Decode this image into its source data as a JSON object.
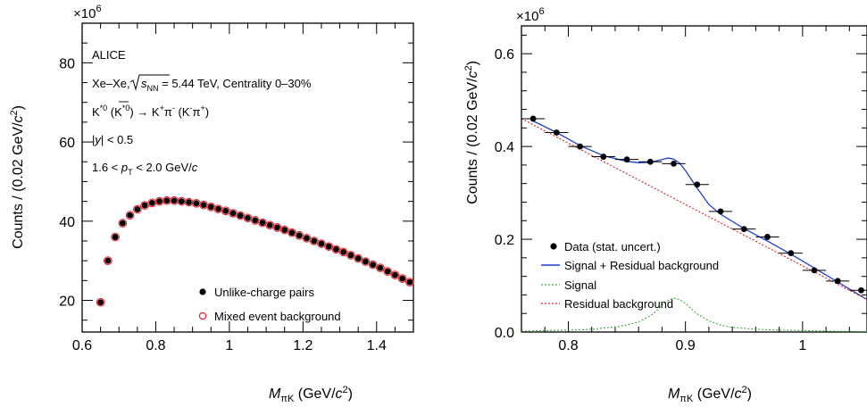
{
  "chart_data": [
    {
      "type": "scatter",
      "multiplier": "×10",
      "multiplier_exp": "6",
      "xlabel": {
        "symbol": "M",
        "sub": "πK",
        "unit_pre": " (GeV/",
        "unit_c": "c",
        "unit_exp": "2",
        "unit_post": ")"
      },
      "ylabel": {
        "pre": "Counts / (0.02 GeV/",
        "c": "c",
        "exp": "2",
        "post": ")"
      },
      "xlim": [
        0.6,
        1.5
      ],
      "ylim": [
        12,
        90
      ],
      "xticks": [
        0.6,
        0.8,
        1.0,
        1.2,
        1.4
      ],
      "xtick_labels": [
        "0.6",
        "0.8",
        "1",
        "1.2",
        "1.4"
      ],
      "yticks": [
        20,
        40,
        60,
        80
      ],
      "ytick_labels": [
        "20",
        "40",
        "60",
        "80"
      ],
      "annotations": {
        "experiment": "ALICE",
        "system_pre": "Xe–Xe, ",
        "system_sqrt": "s",
        "system_sub": "NN",
        "system_post": " = 5.44 TeV, Centrality 0–30%",
        "decay_k": "K",
        "decay_sup": "*0",
        "decay_anti": "K",
        "decay_anti_sup": "*0",
        "decay_arrow": "→ K",
        "decay_kp": "+",
        "decay_pi": "π",
        "decay_pim": "-",
        "decay_conj": "(K",
        "decay_conj_km": "-",
        "decay_conj_pi": "π",
        "decay_conj_pip": "+",
        "decay_close": ")",
        "rapidity_pre": "|",
        "rapidity_y": "y",
        "rapidity_post": "| < 0.5",
        "pt_pre": "1.6 < ",
        "pt_p": "p",
        "pt_sub": "T",
        "pt_post": " < 2.0 GeV/",
        "pt_c": "c"
      },
      "legend": [
        "Unlike-charge pairs",
        "Mixed event background"
      ],
      "legend_position": "bottom-right",
      "series": [
        {
          "name": "Unlike-charge pairs",
          "marker": "filled-circle",
          "color": "#000000",
          "x": [
            0.65,
            0.67,
            0.69,
            0.71,
            0.73,
            0.75,
            0.77,
            0.79,
            0.81,
            0.83,
            0.85,
            0.87,
            0.89,
            0.91,
            0.93,
            0.95,
            0.97,
            0.99,
            1.01,
            1.03,
            1.05,
            1.07,
            1.09,
            1.11,
            1.13,
            1.15,
            1.17,
            1.19,
            1.21,
            1.23,
            1.25,
            1.27,
            1.29,
            1.31,
            1.33,
            1.35,
            1.37,
            1.39,
            1.41,
            1.43,
            1.45,
            1.47,
            1.49
          ],
          "y": [
            19.5,
            30.0,
            36.0,
            39.5,
            41.5,
            43.0,
            44.0,
            44.6,
            45.0,
            45.2,
            45.2,
            45.0,
            44.8,
            44.5,
            44.1,
            43.6,
            43.1,
            42.6,
            42.0,
            41.4,
            40.8,
            40.2,
            39.6,
            39.0,
            38.4,
            37.8,
            37.1,
            36.4,
            35.7,
            35.0,
            34.3,
            33.6,
            32.9,
            32.2,
            31.4,
            30.6,
            29.8,
            29.0,
            28.2,
            27.3,
            26.4,
            25.5,
            24.6
          ]
        },
        {
          "name": "Mixed event background",
          "marker": "open-circle",
          "color": "#e8222a",
          "x": [
            0.65,
            0.67,
            0.69,
            0.71,
            0.73,
            0.75,
            0.77,
            0.79,
            0.81,
            0.83,
            0.85,
            0.87,
            0.89,
            0.91,
            0.93,
            0.95,
            0.97,
            0.99,
            1.01,
            1.03,
            1.05,
            1.07,
            1.09,
            1.11,
            1.13,
            1.15,
            1.17,
            1.19,
            1.21,
            1.23,
            1.25,
            1.27,
            1.29,
            1.31,
            1.33,
            1.35,
            1.37,
            1.39,
            1.41,
            1.43,
            1.45,
            1.47,
            1.49
          ],
          "y": [
            19.5,
            30.0,
            36.0,
            39.5,
            41.5,
            43.0,
            44.0,
            44.6,
            45.0,
            45.2,
            45.2,
            45.0,
            44.8,
            44.5,
            44.1,
            43.6,
            43.1,
            42.6,
            42.0,
            41.4,
            40.8,
            40.2,
            39.6,
            39.0,
            38.4,
            37.8,
            37.1,
            36.4,
            35.7,
            35.0,
            34.3,
            33.6,
            32.9,
            32.2,
            31.4,
            30.6,
            29.8,
            29.0,
            28.2,
            27.3,
            26.4,
            25.5,
            24.6
          ]
        }
      ]
    },
    {
      "type": "scatter",
      "multiplier": "×10",
      "multiplier_exp": "6",
      "xlabel": {
        "symbol": "M",
        "sub": "πK",
        "unit_pre": " (GeV/",
        "unit_c": "c",
        "unit_exp": "2",
        "unit_post": ")"
      },
      "ylabel": {
        "pre": "Counts / (0.02 GeV/",
        "c": "c",
        "exp": "2",
        "post": ")"
      },
      "xlim": [
        0.76,
        1.055
      ],
      "ylim": [
        0.0,
        0.66
      ],
      "xticks": [
        0.8,
        0.9,
        1.0
      ],
      "xtick_labels": [
        "0.8",
        "0.9",
        "1"
      ],
      "yticks": [
        0.0,
        0.2,
        0.4,
        0.6
      ],
      "ytick_labels": [
        "0.0",
        "0.2",
        "0.4",
        "0.6"
      ],
      "legend": [
        "Data (stat. uncert.)",
        "Signal + Residual background",
        "Signal",
        "Residual background"
      ],
      "legend_position": "center-left",
      "series": [
        {
          "name": "Data (stat. uncert.)",
          "marker": "filled-circle",
          "color": "#000000",
          "x": [
            0.77,
            0.79,
            0.81,
            0.83,
            0.85,
            0.87,
            0.89,
            0.91,
            0.93,
            0.95,
            0.97,
            0.99,
            1.01,
            1.03,
            1.05
          ],
          "y": [
            0.46,
            0.43,
            0.4,
            0.378,
            0.372,
            0.367,
            0.363,
            0.318,
            0.26,
            0.222,
            0.205,
            0.17,
            0.133,
            0.11,
            0.09
          ],
          "xerr": 0.01
        },
        {
          "name": "Signal + Residual background",
          "type": "line",
          "color": "#1f3fd0",
          "style": "solid",
          "x": [
            0.77,
            0.79,
            0.81,
            0.83,
            0.85,
            0.86,
            0.87,
            0.88,
            0.885,
            0.89,
            0.895,
            0.9,
            0.91,
            0.92,
            0.93,
            0.95,
            0.97,
            0.99,
            1.01,
            1.03,
            1.055
          ],
          "y": [
            0.455,
            0.43,
            0.402,
            0.38,
            0.368,
            0.365,
            0.366,
            0.372,
            0.375,
            0.373,
            0.364,
            0.348,
            0.31,
            0.275,
            0.254,
            0.223,
            0.196,
            0.168,
            0.138,
            0.108,
            0.07
          ]
        },
        {
          "name": "Signal",
          "type": "line",
          "color": "#3aa83a",
          "style": "dotted",
          "x": [
            0.76,
            0.78,
            0.8,
            0.82,
            0.84,
            0.85,
            0.86,
            0.87,
            0.875,
            0.88,
            0.885,
            0.89,
            0.895,
            0.9,
            0.905,
            0.91,
            0.92,
            0.93,
            0.94,
            0.96,
            0.98,
            1.0,
            1.02,
            1.055
          ],
          "y": [
            0.002,
            0.003,
            0.004,
            0.006,
            0.011,
            0.015,
            0.022,
            0.035,
            0.045,
            0.058,
            0.068,
            0.073,
            0.07,
            0.062,
            0.05,
            0.039,
            0.024,
            0.015,
            0.01,
            0.006,
            0.004,
            0.003,
            0.002,
            0.001
          ]
        },
        {
          "name": "Residual background",
          "type": "line",
          "color": "#d62020",
          "style": "dotted",
          "x": [
            0.76,
            1.055
          ],
          "y": [
            0.46,
            0.07
          ]
        }
      ]
    }
  ]
}
